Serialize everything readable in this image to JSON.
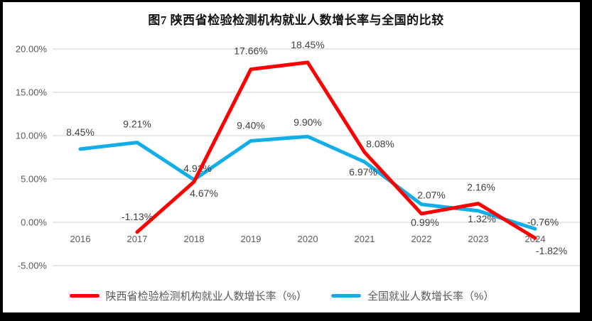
{
  "page": {
    "background": "#FFFFFF",
    "border_color": "#000000"
  },
  "chart_data": {
    "type": "line",
    "title": "图7 陕西省检验检测机构就业人数增长率与全国的比较",
    "categories": [
      "2016",
      "2017",
      "2018",
      "2019",
      "2020",
      "2021",
      "2022",
      "2023",
      "2024"
    ],
    "y_axis": {
      "min": -5,
      "max": 20,
      "step": 5,
      "ticks": [
        {
          "label": "20.00%",
          "value": 20
        },
        {
          "label": "15.00%",
          "value": 15
        },
        {
          "label": "10.00%",
          "value": 10
        },
        {
          "label": "5.00%",
          "value": 5
        },
        {
          "label": "0.00%",
          "value": 0
        },
        {
          "label": "-5.00%",
          "value": -5
        }
      ]
    },
    "grid": true,
    "legend_position": "bottom",
    "colors": {
      "grid": "#D9D9D9",
      "axis_text": "#595959",
      "label_text": "#404040"
    },
    "series": [
      {
        "id": "shaanxi",
        "name": "陕西省检验检测机构就业人数增长率（%）",
        "color": "#FE0000",
        "values": [
          null,
          -1.13,
          4.67,
          17.66,
          18.45,
          8.08,
          0.99,
          2.16,
          -1.82
        ],
        "labels": [
          null,
          {
            "text": "-1.13%",
            "dx": 0,
            "dy": -17
          },
          {
            "text": "4.67%",
            "dx": 14,
            "dy": 21
          },
          {
            "text": "17.66%",
            "dx": 0,
            "dy": -21
          },
          {
            "text": "18.45%",
            "dx": 0,
            "dy": -20
          },
          {
            "text": "8.08%",
            "dx": 22,
            "dy": -7
          },
          {
            "text": "0.99%",
            "dx": 5,
            "dy": 17
          },
          {
            "text": "2.16%",
            "dx": 4,
            "dy": -18
          },
          {
            "text": "-1.82%",
            "dx": 23,
            "dy": 23
          }
        ]
      },
      {
        "id": "national",
        "name": "全国就业人数增长率（%）",
        "color": "#12AEE8",
        "values": [
          8.45,
          9.21,
          4.91,
          9.4,
          9.9,
          6.97,
          2.07,
          1.32,
          -0.76
        ],
        "labels": [
          {
            "text": "8.45%",
            "dx": 0,
            "dy": -19
          },
          {
            "text": "9.21%",
            "dx": 0,
            "dy": -21
          },
          {
            "text": "4.91%",
            "dx": 5,
            "dy": -11
          },
          {
            "text": "9.40%",
            "dx": 0,
            "dy": -17
          },
          {
            "text": "9.90%",
            "dx": 0,
            "dy": -15
          },
          {
            "text": "6.97%",
            "dx": -2,
            "dy": 19
          },
          {
            "text": "2.07%",
            "dx": 14,
            "dy": -8
          },
          {
            "text": "1.32%",
            "dx": 5,
            "dy": 16
          },
          {
            "text": "-0.76%",
            "dx": 11,
            "dy": -5
          }
        ]
      }
    ]
  }
}
